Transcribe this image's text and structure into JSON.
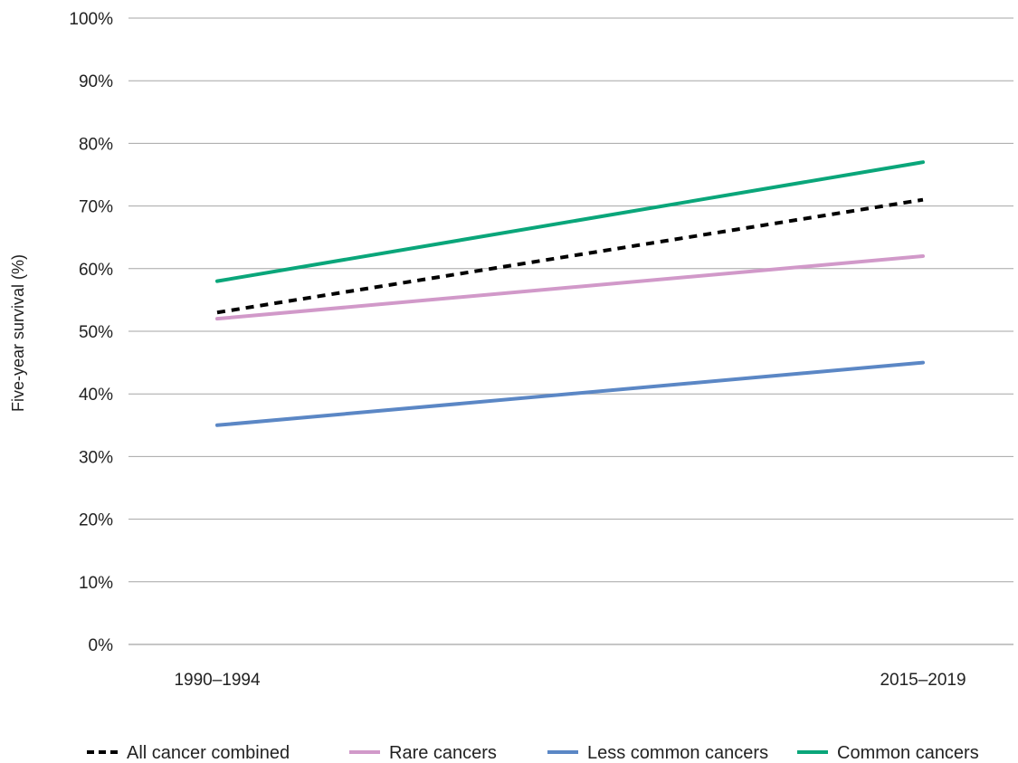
{
  "chart_data": {
    "type": "line",
    "categories": [
      "1990–1994",
      "2015–2019"
    ],
    "ylabel": "Five-year survival (%)",
    "ylim": [
      0,
      100
    ],
    "y_ticks": [
      "0%",
      "10%",
      "20%",
      "30%",
      "40%",
      "50%",
      "60%",
      "70%",
      "80%",
      "90%",
      "100%"
    ],
    "grid": "horizontal",
    "legend_position": "bottom",
    "series": [
      {
        "name": "All cancer combined",
        "values": [
          53,
          71
        ],
        "color": "#000000",
        "dashed": true
      },
      {
        "name": "Rare cancers",
        "values": [
          52,
          62
        ],
        "color": "#d199c9",
        "dashed": false
      },
      {
        "name": "Less common cancers",
        "values": [
          35,
          45
        ],
        "color": "#5b87c5",
        "dashed": false
      },
      {
        "name": "Common cancers",
        "values": [
          58,
          77
        ],
        "color": "#0aa67a",
        "dashed": false
      }
    ]
  }
}
